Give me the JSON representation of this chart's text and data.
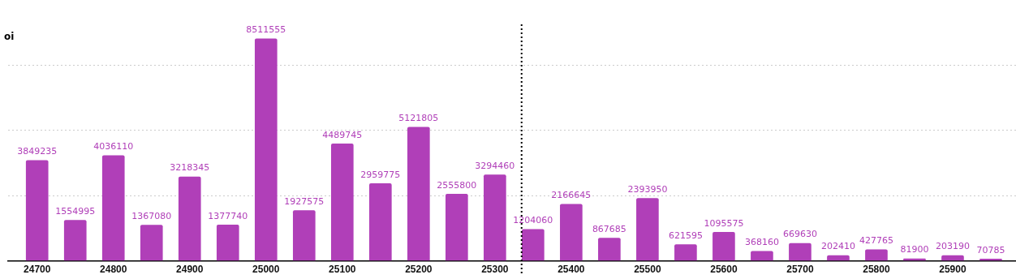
{
  "chart_data": {
    "type": "bar",
    "ylabel": "oi",
    "x": [
      24700,
      24750,
      24800,
      24850,
      24900,
      24950,
      25000,
      25050,
      25100,
      25150,
      25200,
      25250,
      25300,
      25350,
      25400,
      25450,
      25500,
      25550,
      25600,
      25650,
      25700,
      25750,
      25800,
      25850,
      25900,
      25950
    ],
    "values": [
      3849235,
      1554995,
      4036110,
      1367080,
      3218345,
      1377740,
      8511555,
      1927575,
      4489745,
      2959775,
      5121805,
      2555800,
      3294460,
      1204060,
      2166645,
      867685,
      2393950,
      621595,
      1095575,
      368160,
      669630,
      202410,
      427765,
      81900,
      203190,
      70785
    ],
    "color": "#b03fb8",
    "xlim": [
      24662,
      25983
    ],
    "xticks": [
      24700,
      24800,
      24900,
      25000,
      25100,
      25200,
      25300,
      25400,
      25500,
      25600,
      25700,
      25800,
      25900
    ],
    "yticks": [
      {
        "value": 0,
        "label": null
      },
      {
        "value": 2500000,
        "label": null
      },
      {
        "value": 5000000,
        "label": null
      },
      {
        "value": 7500000,
        "label": null
      }
    ],
    "tick_labels": "x",
    "grid": "y",
    "data_labels": true,
    "ref_lines": [
      {
        "axis": "x",
        "value": 25335,
        "color": "#000000",
        "line_style": "dotted"
      }
    ]
  }
}
